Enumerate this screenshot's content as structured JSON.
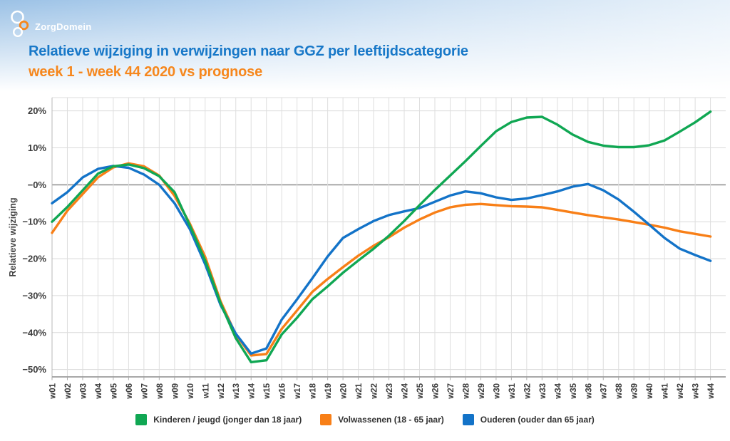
{
  "header": {
    "logo_text": "ZorgDomein",
    "title": "Relatieve wijziging in verwijzingen naar GGZ per leeftijdscategorie",
    "subtitle": "week 1 - week 44 2020 vs prognose"
  },
  "colors": {
    "title_blue": "#1878c8",
    "subtitle_orange": "#f6871d",
    "grid": "#dedede",
    "zero_line": "#9b9b9b",
    "tick_text": "#3b3b3b"
  },
  "chart_data": {
    "type": "line",
    "title": "Relatieve wijziging in verwijzingen naar GGZ per leeftijdscategorie",
    "subtitle": "week 1 - week 44 2020 vs prognose",
    "xlabel": "",
    "ylabel": "Relatieve wijziging",
    "ylim": [
      -52,
      23.6
    ],
    "yticks": [
      20,
      10,
      0,
      -10,
      -20,
      -30,
      -40,
      -50
    ],
    "ytick_labels": [
      "20%",
      "10%",
      "−0%",
      "−10%",
      "−20%",
      "−30%",
      "−40%",
      "−50%"
    ],
    "grid": true,
    "legend_position": "bottom",
    "x": [
      "w01",
      "w02",
      "w03",
      "w04",
      "w05",
      "w06",
      "w07",
      "w08",
      "w09",
      "w10",
      "w11",
      "w12",
      "w13",
      "w14",
      "w15",
      "w16",
      "w17",
      "w18",
      "w19",
      "w20",
      "w21",
      "w22",
      "w23",
      "w24",
      "w25",
      "w26",
      "w27",
      "w28",
      "w29",
      "w30",
      "w31",
      "w32",
      "w33",
      "w34",
      "w35",
      "w36",
      "w37",
      "w38",
      "w39",
      "w40",
      "w41",
      "w42",
      "w43",
      "w44"
    ],
    "series": [
      {
        "name": "Kinderen / jeugd (jonger dan 18 jaar)",
        "slug": "kinderen",
        "color": "#10a753",
        "values": [
          -10,
          -6,
          -1.5,
          3,
          5,
          5.5,
          4.5,
          2.3,
          -2,
          -11,
          -20.5,
          -32,
          -41.5,
          -48,
          -47.5,
          -40.5,
          -36,
          -31,
          -27.5,
          -23.8,
          -20.5,
          -17.3,
          -13.8,
          -9.8,
          -5.5,
          -1.4,
          2.5,
          6.4,
          10.5,
          14.5,
          17,
          18.2,
          18.4,
          16.3,
          13.6,
          11.6,
          10.6,
          10.2,
          10.2,
          10.7,
          12,
          14.4,
          16.9,
          19.8
        ]
      },
      {
        "name": "Volwassenen (18 - 65 jaar)",
        "slug": "volwassenen",
        "color": "#f87f17",
        "values": [
          -13,
          -7,
          -2.5,
          2,
          4.7,
          5.8,
          5,
          2.5,
          -3,
          -10.5,
          -19.5,
          -31.5,
          -40.5,
          -46.2,
          -45.8,
          -39,
          -34,
          -29,
          -25.5,
          -22.3,
          -19.2,
          -16.5,
          -14.2,
          -11.6,
          -9.4,
          -7.5,
          -6.1,
          -5.4,
          -5.2,
          -5.5,
          -5.8,
          -5.9,
          -6.1,
          -6.8,
          -7.5,
          -8.2,
          -8.8,
          -9.4,
          -10.1,
          -10.8,
          -11.6,
          -12.6,
          -13.3,
          -14
        ]
      },
      {
        "name": "Ouderen (ouder dan 65 jaar)",
        "slug": "ouderen",
        "color": "#1373c8",
        "values": [
          -5,
          -2,
          2,
          4.3,
          5.1,
          4.6,
          2.8,
          0,
          -5,
          -12,
          -21.5,
          -32.5,
          -40.3,
          -45.7,
          -44.3,
          -36.5,
          -31,
          -25.3,
          -19.4,
          -14.4,
          -12,
          -9.8,
          -8.2,
          -7.2,
          -6.3,
          -4.6,
          -2.9,
          -1.8,
          -2.3,
          -3.4,
          -4.1,
          -3.7,
          -2.8,
          -1.8,
          -0.5,
          0.2,
          -1.5,
          -4,
          -7.3,
          -10.8,
          -14.4,
          -17.3,
          -19,
          -20.6
        ]
      }
    ]
  }
}
